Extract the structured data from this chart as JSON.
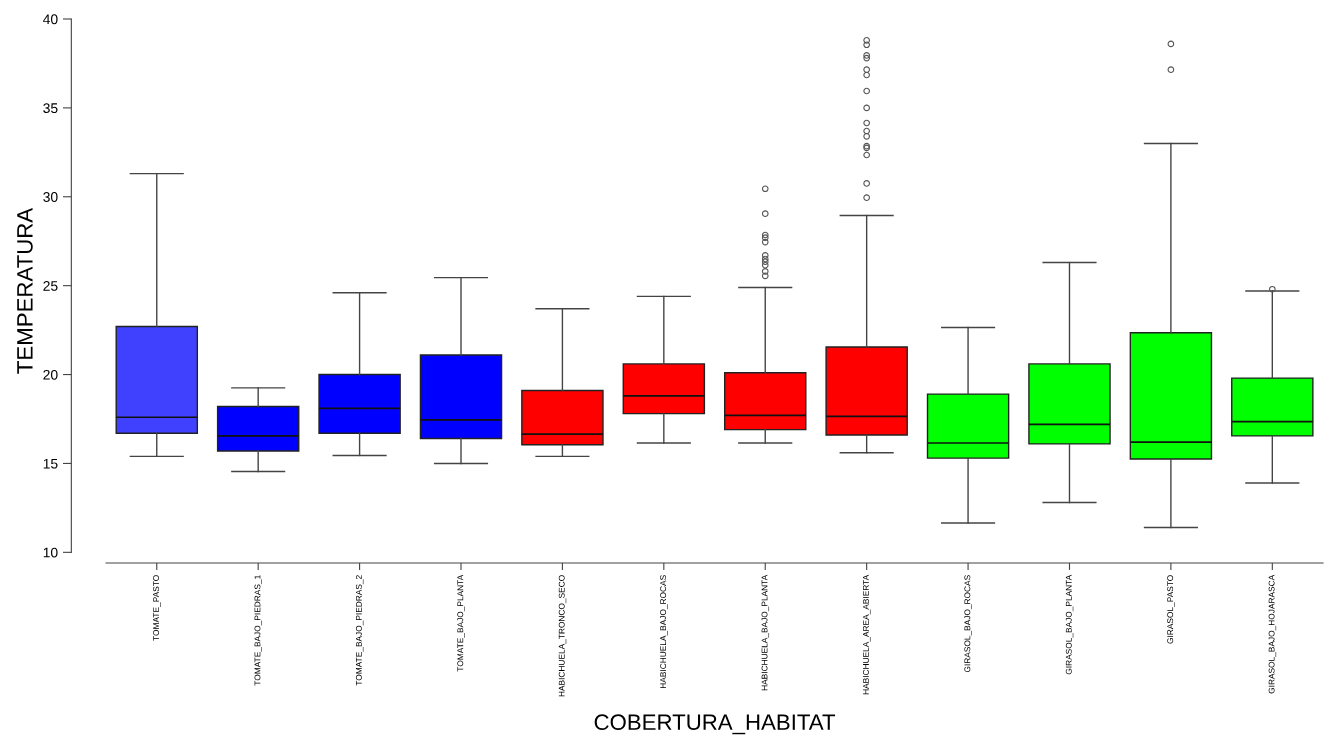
{
  "chart_data": {
    "type": "box",
    "xlabel": "COBERTURA_HABITAT",
    "ylabel": "TEMPERATURA",
    "categories": [
      "TOMATE_PASTO",
      "TOMATE_BAJO_PIEDRAS_1",
      "TOMATE_BAJO_PIEDRAS_2",
      "TOMATE_BAJO_PLANTA",
      "HABICHUELA_TRONCO_SECO",
      "HABICHUELA_BAJO_ROCAS",
      "HABICHUELA_BAJO_PLANTA",
      "HABICHUELA_AREA_ABIERTA",
      "GIRASOL_BAJO_ROCAS",
      "GIRASOL_BAJO_PLANTA",
      "GIRASOL_PASTO",
      "GIRASOL_BAJO_HOJARASCA"
    ],
    "colors": [
      "#4040ff",
      "#0000ff",
      "#0000ff",
      "#0000ff",
      "#ff0000",
      "#ff0000",
      "#ff0000",
      "#ff0000",
      "#00ff00",
      "#00ff00",
      "#00ff00",
      "#00ff00"
    ],
    "boxes": [
      {
        "low": 15.4,
        "q1": 16.7,
        "median": 17.6,
        "q3": 22.7,
        "high": 31.3
      },
      {
        "low": 14.55,
        "q1": 15.7,
        "median": 16.55,
        "q3": 18.2,
        "high": 19.25
      },
      {
        "low": 15.45,
        "q1": 16.7,
        "median": 18.1,
        "q3": 20.0,
        "high": 24.6
      },
      {
        "low": 15.0,
        "q1": 16.4,
        "median": 17.45,
        "q3": 21.1,
        "high": 25.45
      },
      {
        "low": 15.4,
        "q1": 16.05,
        "median": 16.65,
        "q3": 19.1,
        "high": 23.7
      },
      {
        "low": 16.15,
        "q1": 17.8,
        "median": 18.8,
        "q3": 20.6,
        "high": 24.4
      },
      {
        "low": 16.15,
        "q1": 16.9,
        "median": 17.7,
        "q3": 20.1,
        "high": 24.9,
        "outliers": [
          30.45,
          29.05,
          27.85,
          27.7,
          27.45,
          26.7,
          26.5,
          26.35,
          26.15,
          25.8,
          25.55
        ]
      },
      {
        "low": 15.6,
        "q1": 16.6,
        "median": 17.65,
        "q3": 21.55,
        "high": 28.95,
        "outliers": [
          38.8,
          38.55,
          37.95,
          37.8,
          37.15,
          36.85,
          35.95,
          35.0,
          34.15,
          33.7,
          33.4,
          32.85,
          32.75,
          32.35,
          30.75,
          29.95
        ]
      },
      {
        "low": 11.65,
        "q1": 15.3,
        "median": 16.15,
        "q3": 18.9,
        "high": 22.65
      },
      {
        "low": 12.8,
        "q1": 16.1,
        "median": 17.2,
        "q3": 20.6,
        "high": 26.3
      },
      {
        "low": 11.4,
        "q1": 15.25,
        "median": 16.2,
        "q3": 22.35,
        "high": 33.0,
        "outliers": [
          38.6,
          37.15
        ]
      },
      {
        "low": 13.9,
        "q1": 16.55,
        "median": 17.35,
        "q3": 19.8,
        "high": 24.7,
        "outliers": [
          24.8
        ]
      }
    ],
    "ylim": [
      9.4,
      40
    ],
    "yticks": [
      10,
      15,
      20,
      25,
      30,
      35,
      40
    ]
  }
}
